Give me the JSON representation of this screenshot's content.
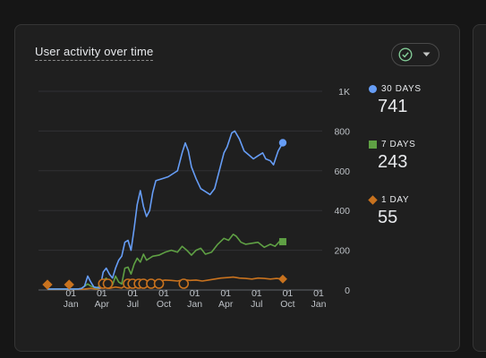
{
  "card": {
    "title": "User activity over time",
    "status_icon": "check-circle-icon",
    "menu_icon": "caret-down-icon"
  },
  "legend": [
    {
      "label": "30 DAYS",
      "value": "741",
      "color": "#669df6",
      "marker": "circle"
    },
    {
      "label": "7 DAYS",
      "value": "243",
      "color": "#5fa044",
      "marker": "square"
    },
    {
      "label": "1 DAY",
      "value": "55",
      "color": "#c8721e",
      "marker": "diamond"
    }
  ],
  "chart_data": {
    "type": "line",
    "y_ticks": [
      "0",
      "200",
      "400",
      "600",
      "800",
      "1K"
    ],
    "ylim": [
      0,
      1000
    ],
    "x_ticks": [
      {
        "day": "01",
        "month": "Jan"
      },
      {
        "day": "01",
        "month": "Apr"
      },
      {
        "day": "01",
        "month": "Jul"
      },
      {
        "day": "01",
        "month": "Oct"
      },
      {
        "day": "01",
        "month": "Jan"
      },
      {
        "day": "01",
        "month": "Apr"
      },
      {
        "day": "01",
        "month": "Jul"
      },
      {
        "day": "01",
        "month": "Oct"
      },
      {
        "day": "01",
        "month": "Jan"
      }
    ],
    "grid": true,
    "y_axis_position": "right",
    "legend_position": "right",
    "series": [
      {
        "name": "30 DAYS",
        "color": "#669df6",
        "points": [
          [
            0,
            5
          ],
          [
            0.2,
            5
          ],
          [
            0.4,
            5
          ],
          [
            0.6,
            5
          ],
          [
            0.8,
            5
          ],
          [
            1.0,
            5
          ],
          [
            1.1,
            8
          ],
          [
            1.2,
            20
          ],
          [
            1.3,
            70
          ],
          [
            1.4,
            40
          ],
          [
            1.5,
            15
          ],
          [
            1.7,
            10
          ],
          [
            1.8,
            90
          ],
          [
            1.9,
            110
          ],
          [
            2.0,
            80
          ],
          [
            2.1,
            60
          ],
          [
            2.2,
            110
          ],
          [
            2.3,
            150
          ],
          [
            2.4,
            170
          ],
          [
            2.5,
            240
          ],
          [
            2.6,
            250
          ],
          [
            2.7,
            200
          ],
          [
            2.8,
            310
          ],
          [
            2.9,
            430
          ],
          [
            3.0,
            500
          ],
          [
            3.1,
            420
          ],
          [
            3.2,
            370
          ],
          [
            3.3,
            400
          ],
          [
            3.4,
            490
          ],
          [
            3.5,
            550
          ],
          [
            3.7,
            560
          ],
          [
            3.9,
            570
          ],
          [
            4.1,
            590
          ],
          [
            4.2,
            600
          ],
          [
            4.35,
            690
          ],
          [
            4.45,
            740
          ],
          [
            4.55,
            700
          ],
          [
            4.65,
            620
          ],
          [
            4.8,
            560
          ],
          [
            4.95,
            510
          ],
          [
            5.1,
            495
          ],
          [
            5.25,
            480
          ],
          [
            5.4,
            510
          ],
          [
            5.55,
            600
          ],
          [
            5.7,
            690
          ],
          [
            5.8,
            720
          ],
          [
            5.95,
            790
          ],
          [
            6.05,
            800
          ],
          [
            6.2,
            760
          ],
          [
            6.35,
            700
          ],
          [
            6.5,
            680
          ],
          [
            6.65,
            660
          ],
          [
            6.8,
            675
          ],
          [
            6.95,
            690
          ],
          [
            7.05,
            660
          ],
          [
            7.2,
            650
          ],
          [
            7.3,
            630
          ],
          [
            7.45,
            700
          ],
          [
            7.6,
            741
          ]
        ]
      },
      {
        "name": "7 DAYS",
        "color": "#5fa044",
        "points": [
          [
            0,
            5
          ],
          [
            0.4,
            5
          ],
          [
            0.8,
            5
          ],
          [
            1.0,
            5
          ],
          [
            1.1,
            8
          ],
          [
            1.3,
            30
          ],
          [
            1.4,
            20
          ],
          [
            1.6,
            8
          ],
          [
            1.8,
            45
          ],
          [
            1.9,
            60
          ],
          [
            2.0,
            30
          ],
          [
            2.1,
            25
          ],
          [
            2.2,
            70
          ],
          [
            2.3,
            40
          ],
          [
            2.4,
            30
          ],
          [
            2.5,
            110
          ],
          [
            2.6,
            115
          ],
          [
            2.7,
            80
          ],
          [
            2.8,
            130
          ],
          [
            2.9,
            160
          ],
          [
            3.0,
            140
          ],
          [
            3.1,
            180
          ],
          [
            3.2,
            150
          ],
          [
            3.3,
            160
          ],
          [
            3.4,
            170
          ],
          [
            3.6,
            175
          ],
          [
            3.8,
            190
          ],
          [
            4.0,
            200
          ],
          [
            4.2,
            190
          ],
          [
            4.35,
            220
          ],
          [
            4.5,
            200
          ],
          [
            4.65,
            175
          ],
          [
            4.8,
            200
          ],
          [
            4.95,
            210
          ],
          [
            5.1,
            180
          ],
          [
            5.3,
            190
          ],
          [
            5.5,
            230
          ],
          [
            5.7,
            260
          ],
          [
            5.85,
            250
          ],
          [
            6.0,
            280
          ],
          [
            6.1,
            270
          ],
          [
            6.25,
            240
          ],
          [
            6.4,
            230
          ],
          [
            6.6,
            235
          ],
          [
            6.8,
            240
          ],
          [
            7.0,
            215
          ],
          [
            7.2,
            230
          ],
          [
            7.35,
            220
          ],
          [
            7.5,
            245
          ],
          [
            7.6,
            243
          ]
        ]
      },
      {
        "name": "1 DAY",
        "color": "#c8721e",
        "points": [
          [
            0,
            3
          ],
          [
            0.4,
            3
          ],
          [
            0.8,
            3
          ],
          [
            1.0,
            3
          ],
          [
            1.2,
            5
          ],
          [
            1.4,
            8
          ],
          [
            1.6,
            4
          ],
          [
            1.8,
            12
          ],
          [
            2.0,
            8
          ],
          [
            2.2,
            15
          ],
          [
            2.4,
            10
          ],
          [
            2.6,
            30
          ],
          [
            2.8,
            35
          ],
          [
            3.0,
            38
          ],
          [
            3.2,
            40
          ],
          [
            3.4,
            42
          ],
          [
            3.6,
            45
          ],
          [
            3.8,
            50
          ],
          [
            4.0,
            48
          ],
          [
            4.2,
            45
          ],
          [
            4.4,
            52
          ],
          [
            4.6,
            48
          ],
          [
            4.8,
            50
          ],
          [
            5.0,
            45
          ],
          [
            5.2,
            50
          ],
          [
            5.4,
            55
          ],
          [
            5.6,
            60
          ],
          [
            5.8,
            62
          ],
          [
            6.0,
            65
          ],
          [
            6.2,
            60
          ],
          [
            6.4,
            58
          ],
          [
            6.6,
            55
          ],
          [
            6.8,
            60
          ],
          [
            7.0,
            58
          ],
          [
            7.2,
            55
          ],
          [
            7.4,
            58
          ],
          [
            7.6,
            55
          ]
        ]
      }
    ],
    "annotations_x": [
      0,
      0.7,
      1.8,
      1.95,
      2.6,
      2.75,
      2.95,
      3.1,
      3.35,
      3.6,
      4.4
    ]
  }
}
